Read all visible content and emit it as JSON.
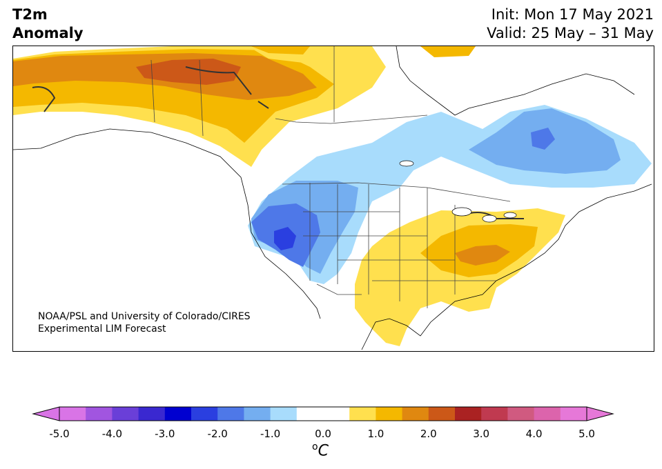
{
  "title": {
    "left_line1": "T2m",
    "left_line2": "Anomaly",
    "right_line1": "Init: Mon 17 May 2021",
    "right_line2": "Valid: 25 May – 31 May"
  },
  "credit": {
    "line1": "NOAA/PSL and University of Colorado/CIRES",
    "line2": "Experimental LIM Forecast"
  },
  "colorbar": {
    "ticks": [
      "-5.0",
      "-4.0",
      "-3.0",
      "-2.0",
      "-1.0",
      "0.0",
      "1.0",
      "2.0",
      "3.0",
      "4.0",
      "5.0"
    ],
    "unit_base": "C",
    "unit_sup": "o",
    "colors": [
      "#d974e6",
      "#a155e0",
      "#6a3fd8",
      "#3a28d0",
      "#0000d0",
      "#2a3fe0",
      "#4e78e8",
      "#74aef0",
      "#a8dcfc",
      "#ffffff",
      "#ffffff",
      "#ffe04e",
      "#f4b800",
      "#e08810",
      "#cc5818",
      "#aa2222",
      "#c03a50",
      "#d05a80",
      "#dc64ac",
      "#e678d8"
    ],
    "extend_min_color": "#d974e6",
    "extend_max_color": "#e678d8"
  },
  "map": {
    "region": "North America",
    "variable": "2-meter temperature anomaly"
  }
}
